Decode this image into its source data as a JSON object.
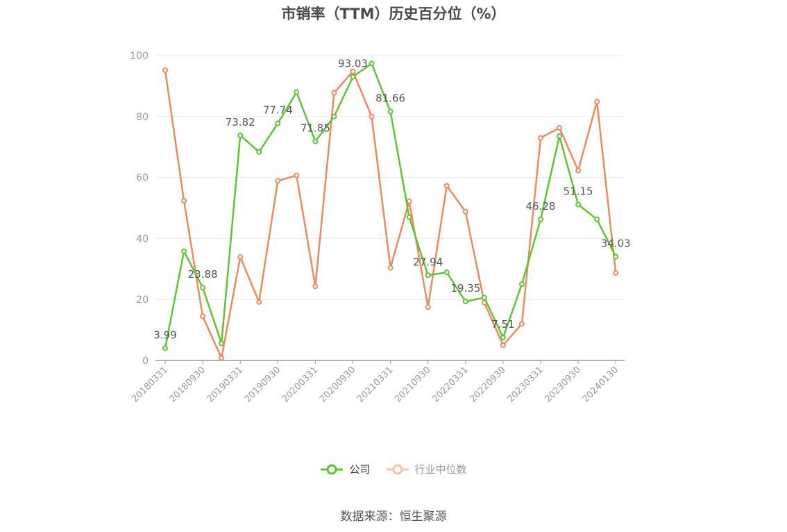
{
  "title": "市销率（TTM）历史百分位（%）",
  "source": "数据来源：恒生聚源",
  "legend": {
    "company": "公司",
    "industry": "行业中位数"
  },
  "colors": {
    "company": "#5ac82c",
    "industry": "#f0895a",
    "grid": "#e6e9f0",
    "axis": "#999999"
  },
  "chart_data": {
    "type": "line",
    "title": "市销率（TTM）历史百分位（%）",
    "ylim": [
      0,
      100
    ],
    "yticks": [
      "0",
      "20",
      "40",
      "60",
      "80",
      "100"
    ],
    "x": [
      "20180331",
      "20180630",
      "20180930",
      "20181231",
      "20190331",
      "20190630",
      "20190930",
      "20191231",
      "20200331",
      "20200630",
      "20200930",
      "20201231",
      "20210331",
      "20210630",
      "20210930",
      "20211231",
      "20220331",
      "20220630",
      "20220930",
      "20221231",
      "20230331",
      "20230630",
      "20230930",
      "20231231",
      "20240130"
    ],
    "xtick_labels": [
      "20180331",
      "20180930",
      "20190331",
      "20190930",
      "20200331",
      "20200930",
      "20210331",
      "20210930",
      "20220331",
      "20220930",
      "20230331",
      "20230930",
      "20240130"
    ],
    "series": [
      {
        "name": "公司",
        "values": [
          3.99,
          35.8,
          23.88,
          5.6,
          73.82,
          68.4,
          77.74,
          88.0,
          71.85,
          80.0,
          93.03,
          97.4,
          81.66,
          47.0,
          27.94,
          28.9,
          19.35,
          20.6,
          7.51,
          25.0,
          46.28,
          73.6,
          51.15,
          46.3,
          34.03
        ],
        "labels": [
          "3.99",
          "",
          "23.88",
          "",
          "73.82",
          "",
          "77.74",
          "",
          "71.85",
          "",
          "93.03",
          "",
          "81.66",
          "",
          "27.94",
          "",
          "19.35",
          "",
          "7.51",
          "",
          "46.28",
          "",
          "51.15",
          "",
          "34.03"
        ]
      },
      {
        "name": "行业中位数",
        "values": [
          95.2,
          52.4,
          14.5,
          0.8,
          33.9,
          19.2,
          58.9,
          60.7,
          24.3,
          87.8,
          94.8,
          80.0,
          30.4,
          52.2,
          17.5,
          57.3,
          48.8,
          19.0,
          5.0,
          12.0,
          73.0,
          76.3,
          62.3,
          84.9,
          28.7
        ]
      }
    ]
  }
}
